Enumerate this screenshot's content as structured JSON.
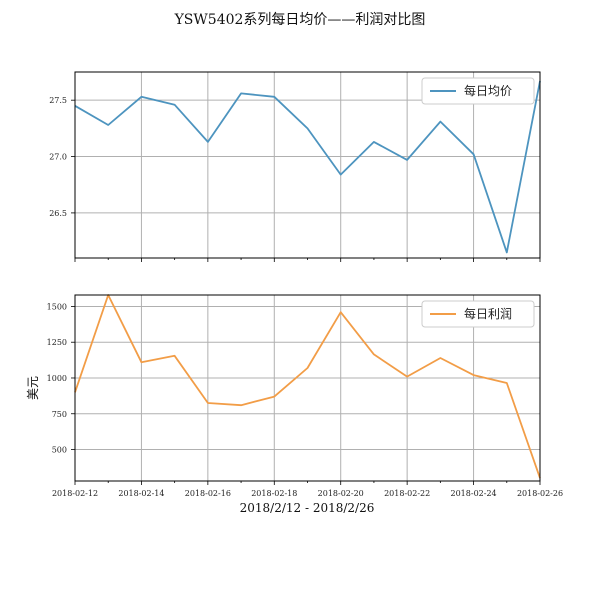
{
  "chart_data": {
    "title": "YSW5402系列每日均价——利润对比图",
    "xlabel": "2018/2/12 - 2018/2/26",
    "x": [
      "2018-02-12",
      "2018-02-13",
      "2018-02-14",
      "2018-02-15",
      "2018-02-16",
      "2018-02-17",
      "2018-02-18",
      "2018-02-19",
      "2018-02-20",
      "2018-02-21",
      "2018-02-22",
      "2018-02-23",
      "2018-02-24",
      "2018-02-25",
      "2018-02-26"
    ],
    "x_tick_labels": [
      "2018-02-12",
      "2018-02-14",
      "2018-02-16",
      "2018-02-18",
      "2018-02-20",
      "2018-02-22",
      "2018-02-24",
      "2018-02-26"
    ],
    "grid": true,
    "panels": [
      {
        "type": "line",
        "series": [
          {
            "name": "每日均价",
            "color": "#4d94bf",
            "values": [
              27.45,
              27.28,
              27.53,
              27.46,
              27.13,
              27.56,
              27.53,
              27.25,
              26.84,
              27.13,
              26.97,
              27.31,
              27.02,
              26.15,
              27.67
            ]
          }
        ],
        "ylabel": "",
        "ylim": [
          26.1,
          27.75
        ],
        "yticks": [
          26.5,
          27.0,
          27.5
        ],
        "ytick_labels": [
          "26.5",
          "27.0",
          "27.5"
        ],
        "legend_position": "top-right"
      },
      {
        "type": "line",
        "series": [
          {
            "name": "每日利润",
            "color": "#f29d47",
            "values": [
              900,
              1580,
              1110,
              1155,
              825,
              810,
              870,
              1070,
              1460,
              1165,
              1010,
              1140,
              1020,
              965,
              300
            ]
          }
        ],
        "ylabel": "美元",
        "ylim": [
          280,
          1580
        ],
        "yticks": [
          500,
          750,
          1000,
          1250,
          1500
        ],
        "ytick_labels": [
          "500",
          "750",
          "1000",
          "1250",
          "1500"
        ],
        "legend_position": "top-right"
      }
    ]
  }
}
